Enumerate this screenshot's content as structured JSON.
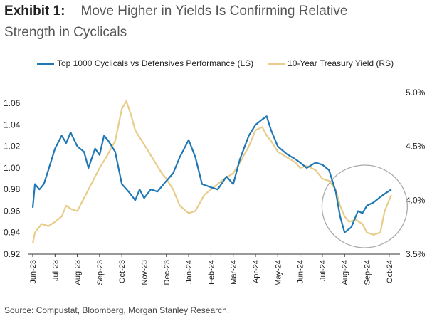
{
  "header": {
    "exhibit_label": "Exhibit 1:",
    "title": "Move Higher in Yields Is Confirming Relative",
    "title_line2": "Strength in Cyclicals"
  },
  "source": "Source: Compustat, Bloomberg, Morgan Stanley Research.",
  "colors": {
    "cyclicals": "#1f77b4",
    "treasury": "#e8cc8a",
    "axis": "#333333",
    "circle": "#aaaaaa"
  },
  "chart_data": {
    "type": "line",
    "x_tick_labels": [
      "Jun-23",
      "Jul-23",
      "Aug-23",
      "Sep-23",
      "Oct-23",
      "Nov-23",
      "Dec-23",
      "Jan-24",
      "Feb-24",
      "Mar-24",
      "Apr-24",
      "May-24",
      "Jun-24",
      "Jul-24",
      "Aug-24",
      "Sep-24",
      "Oct-24"
    ],
    "y_left": {
      "ticks": [
        "0.92",
        "0.94",
        "0.96",
        "0.98",
        "1.00",
        "1.02",
        "1.04",
        "1.06"
      ],
      "min": 0.92,
      "max": 1.07
    },
    "y_right": {
      "ticks": [
        "3.5%",
        "4.0%",
        "4.5%",
        "5.0%"
      ],
      "min": 3.5,
      "max": 5.0
    },
    "annotation": "circle highlighting Aug-24 to Oct-24",
    "series": [
      {
        "name": "Top 1000 Cyclicals vs Defensives Performance (LS)",
        "axis": "left",
        "points": [
          [
            0,
            0.963
          ],
          [
            0.1,
            0.985
          ],
          [
            0.3,
            0.98
          ],
          [
            0.5,
            0.985
          ],
          [
            0.7,
            0.998
          ],
          [
            1.0,
            1.018
          ],
          [
            1.3,
            1.03
          ],
          [
            1.5,
            1.023
          ],
          [
            1.7,
            1.033
          ],
          [
            2.0,
            1.02
          ],
          [
            2.3,
            1.015
          ],
          [
            2.5,
            1.0
          ],
          [
            2.8,
            1.018
          ],
          [
            3.0,
            1.012
          ],
          [
            3.2,
            1.03
          ],
          [
            3.4,
            1.025
          ],
          [
            3.7,
            1.015
          ],
          [
            4.0,
            0.985
          ],
          [
            4.3,
            0.978
          ],
          [
            4.6,
            0.97
          ],
          [
            4.8,
            0.98
          ],
          [
            5.0,
            0.972
          ],
          [
            5.3,
            0.98
          ],
          [
            5.6,
            0.978
          ],
          [
            6.0,
            0.988
          ],
          [
            6.3,
            0.995
          ],
          [
            6.6,
            1.01
          ],
          [
            7.0,
            1.026
          ],
          [
            7.3,
            1.01
          ],
          [
            7.6,
            0.985
          ],
          [
            8.0,
            0.982
          ],
          [
            8.3,
            0.98
          ],
          [
            8.7,
            0.992
          ],
          [
            9.0,
            0.985
          ],
          [
            9.3,
            1.008
          ],
          [
            9.7,
            1.03
          ],
          [
            10.0,
            1.04
          ],
          [
            10.3,
            1.045
          ],
          [
            10.5,
            1.048
          ],
          [
            10.7,
            1.035
          ],
          [
            11.0,
            1.02
          ],
          [
            11.4,
            1.013
          ],
          [
            11.8,
            1.008
          ],
          [
            12.0,
            1.005
          ],
          [
            12.3,
            1.0
          ],
          [
            12.7,
            1.005
          ],
          [
            13.0,
            1.003
          ],
          [
            13.3,
            0.998
          ],
          [
            13.6,
            0.978
          ],
          [
            13.8,
            0.955
          ],
          [
            14.0,
            0.94
          ],
          [
            14.3,
            0.945
          ],
          [
            14.6,
            0.96
          ],
          [
            14.8,
            0.958
          ],
          [
            15.0,
            0.965
          ],
          [
            15.3,
            0.968
          ],
          [
            15.6,
            0.973
          ],
          [
            15.8,
            0.976
          ],
          [
            16.1,
            0.98
          ]
        ]
      },
      {
        "name": "10-Year Treasury Yield (RS)",
        "axis": "right",
        "points": [
          [
            0,
            3.6
          ],
          [
            0.1,
            3.7
          ],
          [
            0.4,
            3.78
          ],
          [
            0.7,
            3.76
          ],
          [
            1.0,
            3.8
          ],
          [
            1.3,
            3.85
          ],
          [
            1.5,
            3.95
          ],
          [
            1.7,
            3.92
          ],
          [
            2.0,
            3.9
          ],
          [
            2.5,
            4.1
          ],
          [
            3.0,
            4.3
          ],
          [
            3.3,
            4.4
          ],
          [
            3.7,
            4.55
          ],
          [
            4.0,
            4.85
          ],
          [
            4.2,
            4.92
          ],
          [
            4.4,
            4.8
          ],
          [
            4.6,
            4.65
          ],
          [
            4.9,
            4.55
          ],
          [
            5.2,
            4.45
          ],
          [
            5.5,
            4.35
          ],
          [
            5.8,
            4.25
          ],
          [
            6.0,
            4.2
          ],
          [
            6.3,
            4.1
          ],
          [
            6.6,
            3.95
          ],
          [
            7.0,
            3.88
          ],
          [
            7.3,
            3.9
          ],
          [
            7.7,
            4.05
          ],
          [
            8.0,
            4.1
          ],
          [
            8.3,
            4.15
          ],
          [
            8.6,
            4.2
          ],
          [
            9.0,
            4.25
          ],
          [
            9.3,
            4.35
          ],
          [
            9.7,
            4.5
          ],
          [
            10.0,
            4.65
          ],
          [
            10.3,
            4.68
          ],
          [
            10.5,
            4.6
          ],
          [
            10.7,
            4.55
          ],
          [
            11.0,
            4.45
          ],
          [
            11.4,
            4.4
          ],
          [
            11.8,
            4.35
          ],
          [
            12.0,
            4.3
          ],
          [
            12.3,
            4.32
          ],
          [
            12.7,
            4.28
          ],
          [
            13.0,
            4.2
          ],
          [
            13.3,
            4.18
          ],
          [
            13.6,
            4.1
          ],
          [
            13.8,
            3.95
          ],
          [
            14.0,
            3.85
          ],
          [
            14.2,
            3.8
          ],
          [
            14.5,
            3.82
          ],
          [
            14.8,
            3.78
          ],
          [
            15.0,
            3.7
          ],
          [
            15.3,
            3.68
          ],
          [
            15.6,
            3.7
          ],
          [
            15.8,
            3.9
          ],
          [
            16.1,
            4.05
          ]
        ]
      }
    ]
  }
}
